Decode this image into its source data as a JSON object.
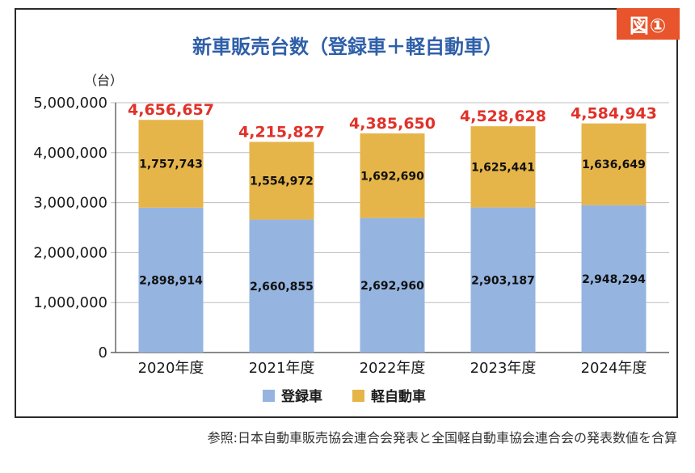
{
  "badge": "図①",
  "source": "参照:日本自動車販売協会連合会発表と全国軽自動車協会連合会の発表数値を合算",
  "colors": {
    "registered": "#95b5e0",
    "kei": "#e6b54a",
    "total": "#e0322a",
    "title": "#2f5fa8",
    "badge": "#e8542b"
  },
  "chart_data": {
    "type": "bar",
    "stacked": true,
    "title": "新車販売台数（登録車＋軽自動車）",
    "ylabel": "（台）",
    "xlabel": "",
    "ylim": [
      0,
      5000000
    ],
    "yticks": [
      0,
      1000000,
      2000000,
      3000000,
      4000000,
      5000000
    ],
    "ytick_labels": [
      "0",
      "1,000,000",
      "2,000,000",
      "3,000,000",
      "4,000,000",
      "5,000,000"
    ],
    "grid": true,
    "legend": "bottom",
    "categories": [
      "2020年度",
      "2021年度",
      "2022年度",
      "2023年度",
      "2024年度"
    ],
    "series": [
      {
        "name": "登録車",
        "values": [
          2898914,
          2660855,
          2692960,
          2903187,
          2948294
        ],
        "labels": [
          "2,898,914",
          "2,660,855",
          "2,692,960",
          "2,903,187",
          "2,948,294"
        ]
      },
      {
        "name": "軽自動車",
        "values": [
          1757743,
          1554972,
          1692690,
          1625441,
          1636649
        ],
        "labels": [
          "1,757,743",
          "1,554,972",
          "1,692,690",
          "1,625,441",
          "1,636,649"
        ]
      }
    ],
    "totals": [
      4656657,
      4215827,
      4385650,
      4528628,
      4584943
    ],
    "total_labels": [
      "4,656,657",
      "4,215,827",
      "4,385,650",
      "4,528,628",
      "4,584,943"
    ]
  }
}
